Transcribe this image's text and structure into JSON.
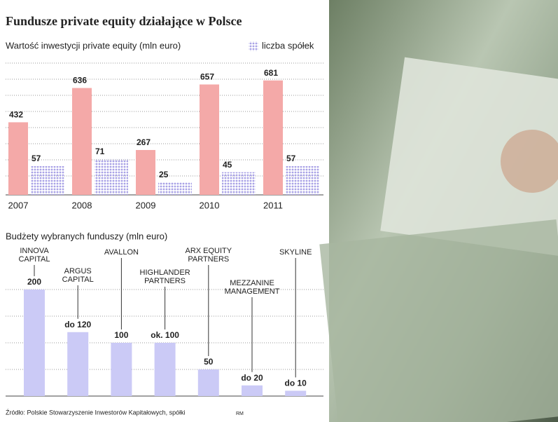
{
  "title": "Fundusze private equity działające w Polsce",
  "chart_data": [
    {
      "type": "bar",
      "subtitle": "Wartość inwestycji private equity (mln euro)",
      "categories": [
        "2007",
        "2008",
        "2009",
        "2010",
        "2011"
      ],
      "ylim": [
        0,
        780
      ],
      "y2lim": [
        0,
        260
      ],
      "series": [
        {
          "color": "#f4a9a8",
          "values": [
            432,
            636,
            267,
            657,
            681
          ]
        },
        {
          "name": "liczba spółek",
          "color": "#a9a2e6",
          "axis": "y2",
          "values": [
            57,
            71,
            25,
            45,
            57
          ]
        }
      ]
    },
    {
      "type": "bar",
      "subtitle": "Budżety wybranych funduszy (mln euro)",
      "categories": [
        "INNOVA\nCAPITAL",
        "ARGUS\nCAPITAL",
        "AVALLON",
        "HIGHLANDER\nPARTNERS",
        "ARX EQUITY\nPARTNERS",
        "MEZZANINE\nMANAGEMENT",
        "SKYLINE"
      ],
      "values": [
        200,
        120,
        100,
        100,
        50,
        20,
        10
      ],
      "value_labels": [
        "200",
        "do 120",
        "100",
        "ok. 100",
        "50",
        "do 20",
        "do 10"
      ],
      "color": "#cbcaf6",
      "ylim": [
        0,
        200
      ]
    }
  ],
  "source": "Źródło: Polskie Stowarzyszenie Inwestorów Kapitałowych, spółki",
  "author": "RM"
}
